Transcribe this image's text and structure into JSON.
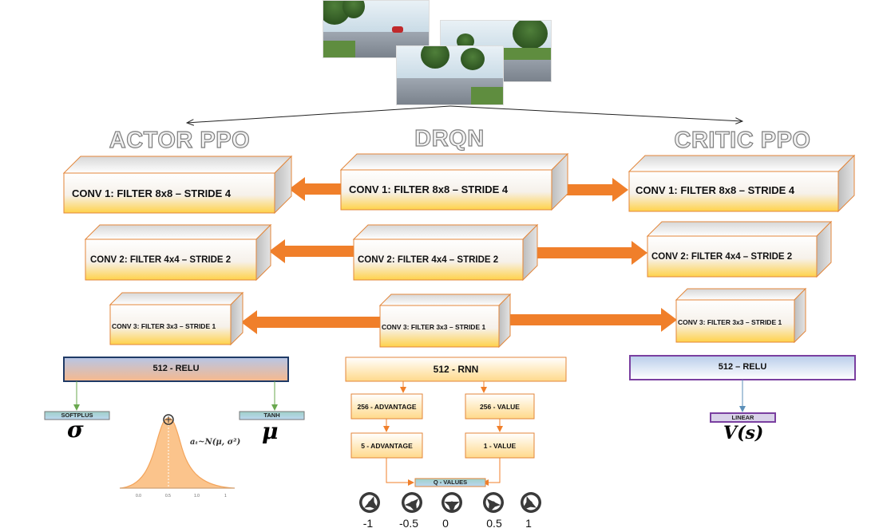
{
  "columns": {
    "actor": {
      "title": "ACTOR PPO"
    },
    "drqn": {
      "title": "DRQN"
    },
    "critic": {
      "title": "CRITIC PPO"
    }
  },
  "conv_layers": {
    "conv1": "CONV 1: FILTER 8x8 – STRIDE 4",
    "conv2": "CONV 2: FILTER 4x4 – STRIDE 2",
    "conv3": "CONV 3: FILTER 3x3 – STRIDE 1"
  },
  "actor": {
    "dense": "512 - RELU",
    "softplus": "SOFTPLUS",
    "tanh": "TANH",
    "sigma": "σ",
    "mu": "μ",
    "formula": "aₜ~N(μ, σ²)",
    "dist_ticks": [
      "0.0",
      "0.5",
      "1.0",
      "1"
    ]
  },
  "drqn": {
    "dense": "512 - RNN",
    "adv256": "256 - ADVANTAGE",
    "val256": "256 - VALUE",
    "adv5": "5 - ADVANTAGE",
    "val1": "1 - VALUE",
    "qvalues": "Q - VALUES",
    "actions": [
      "-1",
      "-0.5",
      "0",
      "0.5",
      "1"
    ]
  },
  "critic": {
    "dense": "512 – RELU",
    "linear": "LINEAR",
    "value_fn": "V(s)"
  },
  "colors": {
    "arrow": "#f07f2a",
    "box_edge": "#e3863a",
    "box_fill_top": "#ffffff",
    "box_fill_bottom": "#ffd24a",
    "actor_border": "#1f3a66",
    "critic_border": "#7a3fa0",
    "dist_fill": "#fbc48c"
  }
}
